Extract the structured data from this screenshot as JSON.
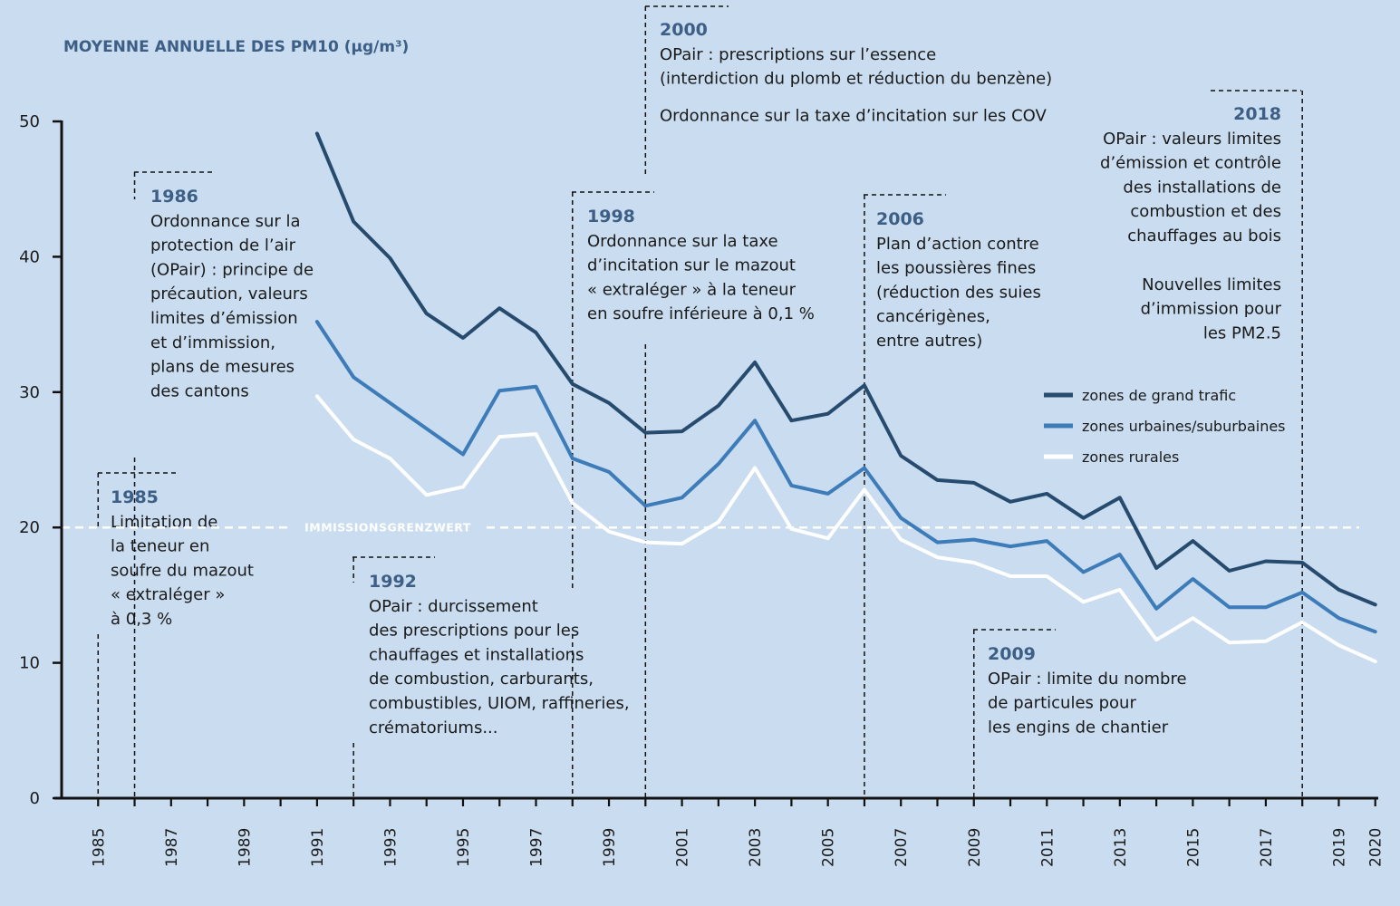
{
  "chart_data": {
    "type": "line",
    "title": "MOYENNE ANNUELLE DES PM10 (µg/m³)",
    "ylim": [
      0,
      50
    ],
    "yticks": [
      0,
      10,
      20,
      30,
      40,
      50
    ],
    "xlim": [
      1984,
      2020
    ],
    "xtick_labels": [
      "1985",
      "1987",
      "1989",
      "1991",
      "1993",
      "1995",
      "1997",
      "1999",
      "2001",
      "2003",
      "2005",
      "2007",
      "2009",
      "2011",
      "2013",
      "2015",
      "2017",
      "2019",
      "2020"
    ],
    "x": [
      1991,
      1992,
      1993,
      1994,
      1995,
      1996,
      1997,
      1998,
      1999,
      2000,
      2001,
      2002,
      2003,
      2004,
      2005,
      2006,
      2007,
      2008,
      2009,
      2010,
      2011,
      2012,
      2013,
      2014,
      2015,
      2016,
      2017,
      2018,
      2019,
      2020
    ],
    "series": [
      {
        "name": "zones de grand trafic",
        "color": "#264b6e",
        "values": [
          49.1,
          42.6,
          39.9,
          35.8,
          34.0,
          36.2,
          34.4,
          30.6,
          29.2,
          27.0,
          27.1,
          29.0,
          32.2,
          27.9,
          28.4,
          30.5,
          25.3,
          23.5,
          23.3,
          21.9,
          22.5,
          20.7,
          22.2,
          17.0,
          19.0,
          16.8,
          17.5,
          17.4,
          15.4,
          14.3
        ]
      },
      {
        "name": "zones urbaines/suburbaines",
        "color": "#3d7cb8",
        "values": [
          35.2,
          31.1,
          29.2,
          27.3,
          25.4,
          30.1,
          30.4,
          25.1,
          24.1,
          21.6,
          22.2,
          24.7,
          27.9,
          23.1,
          22.5,
          24.4,
          20.7,
          18.9,
          19.1,
          18.6,
          19.0,
          16.7,
          18.0,
          14.0,
          16.2,
          14.1,
          14.1,
          15.2,
          13.3,
          12.3
        ]
      },
      {
        "name": "zones rurales",
        "color": "#ffffff",
        "values": [
          29.7,
          26.5,
          25.1,
          22.4,
          23.0,
          26.7,
          26.9,
          21.8,
          19.7,
          18.9,
          18.8,
          20.4,
          24.4,
          19.9,
          19.2,
          22.8,
          19.1,
          17.8,
          17.4,
          16.4,
          16.4,
          14.5,
          15.4,
          11.7,
          13.3,
          11.5,
          11.6,
          13.0,
          11.3,
          10.1
        ]
      }
    ],
    "threshold": {
      "value": 20,
      "label": "IMMISSIONSGRENZWERT"
    },
    "legend_position": "right",
    "grid": false
  },
  "annotations": [
    {
      "year": 1985,
      "lines": [
        "1985",
        "Limitation de",
        "la teneur en",
        "soufre du mazout",
        "« extraléger »",
        "à 0,3 %"
      ]
    },
    {
      "year": 1986,
      "lines": [
        "1986",
        "Ordonnance sur la",
        "protection de l’air",
        "(OPair) : principe de",
        "précaution, valeurs",
        "limites d’émission",
        "et d’immission,",
        "plans de mesures",
        "des cantons"
      ]
    },
    {
      "year": 1992,
      "lines": [
        "1992",
        "OPair : durcissement",
        "des prescriptions pour les",
        "chauffages et installations",
        "de combustion, carburants,",
        "combustibles, UIOM, raffineries,",
        "crématoriums..."
      ]
    },
    {
      "year": 1998,
      "lines": [
        "1998",
        "Ordonnance sur la taxe",
        "d’incitation sur le mazout",
        "« extraléger » à la teneur",
        "en soufre inférieure à 0,1 %"
      ]
    },
    {
      "year": 2000,
      "lines": [
        "2000",
        "OPair : prescriptions sur l’essence",
        "(interdiction du plomb et réduction du benzène)",
        "Ordonnance sur la taxe d’incitation sur les COV"
      ]
    },
    {
      "year": 2006,
      "lines": [
        "2006",
        "Plan d’action contre",
        "les poussières fines",
        "(réduction des suies",
        "cancérigènes,",
        "entre autres)"
      ]
    },
    {
      "year": 2009,
      "lines": [
        "2009",
        "OPair : limite du nombre",
        "de particules pour",
        "les engins de chantier"
      ]
    },
    {
      "year": 2018,
      "lines": [
        "2018",
        "OPair : valeurs limites",
        "d’émission et contrôle",
        "des installations de",
        "combustion et des",
        "chauffages au bois",
        "Nouvelles limites",
        "d’immission pour",
        "les PM2.5"
      ]
    }
  ]
}
